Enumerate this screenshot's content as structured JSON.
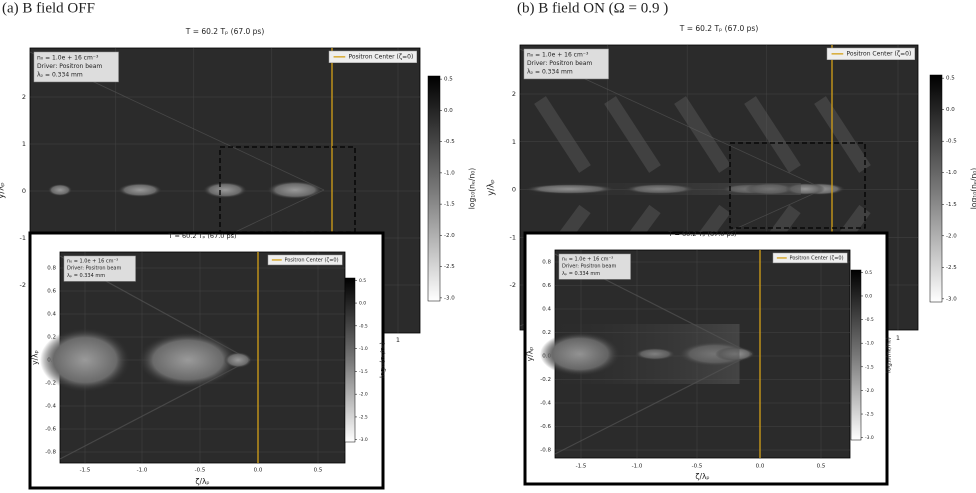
{
  "panels": [
    {
      "caption": "(a) B field OFF",
      "main": {
        "title": "T = 60.2 Tₚ (67.0 ps)",
        "info": [
          "n₀ = 1.0e + 16 cm⁻³",
          "Driver: Positron beam",
          "λₚ = 0.334 mm"
        ],
        "legend": "Positron Center (ζ=0)",
        "ylabel": "y/λₚ",
        "yticks": [
          "2",
          "1",
          "0",
          "-1",
          "-2"
        ],
        "xticks": [
          "1"
        ],
        "colorbar_label": "log₁₀(nₑ/n₀)",
        "colorbar_ticks": [
          "0.5",
          "0.0",
          "-0.5",
          "-1.0",
          "-1.5",
          "-2.0",
          "-2.5",
          "-3.0"
        ]
      },
      "inset": {
        "title": "T = 60.2 Tₚ (67.0 ps)",
        "info": [
          "n₀ = 1.0e + 16 cm⁻³",
          "Driver: Positron beam",
          "λₚ = 0.334 mm"
        ],
        "legend": "Positron Center (ζ=0)",
        "ylabel": "y/λₚ",
        "xlabel": "ζ/λₚ",
        "yticks": [
          "0.8",
          "0.6",
          "0.4",
          "0.2",
          "0.0",
          "-0.2",
          "-0.4",
          "-0.6",
          "-0.8"
        ],
        "xticks": [
          "-1.5",
          "-1.0",
          "-0.5",
          "0.0",
          "0.5"
        ],
        "colorbar_label": "log₁₀(nₑ/n₀)",
        "colorbar_ticks": [
          "0.5",
          "0.0",
          "-0.5",
          "-1.0",
          "-1.5",
          "-2.0",
          "-2.5",
          "-3.0"
        ]
      }
    },
    {
      "caption": "(b) B field ON (Ω = 0.9 )",
      "main": {
        "title": "T = 60.2 Tₚ (67.0 ps)",
        "info": [
          "n₀ = 1.0e + 16 cm⁻³",
          "Driver: Positron beam",
          "λₚ = 0.334 mm"
        ],
        "legend": "Positron Center (ζ=0)",
        "ylabel": "y/λₚ",
        "yticks": [
          "2",
          "1",
          "0",
          "-1",
          "-2"
        ],
        "xticks": [
          "1"
        ],
        "colorbar_label": "log₁₀(nₑ/n₀)",
        "colorbar_ticks": [
          "0.5",
          "0.0",
          "-0.5",
          "-1.0",
          "-1.5",
          "-2.0",
          "-2.5",
          "-3.0"
        ]
      },
      "inset": {
        "title": "T = 60.2 Tₚ (67.0 ps)",
        "info": [
          "n₀ = 1.0e + 16 cm⁻³",
          "Driver: Positron beam",
          "λₚ = 0.334 mm"
        ],
        "legend": "Positron Center (ζ=0)",
        "ylabel": "y/λₚ",
        "xlabel": "ζ/λₚ",
        "yticks": [
          "0.8",
          "0.6",
          "0.4",
          "0.2",
          "0.0",
          "-0.2",
          "-0.4",
          "-0.6",
          "-0.8"
        ],
        "xticks": [
          "-1.5",
          "-1.0",
          "-0.5",
          "0.0",
          "0.5"
        ],
        "colorbar_label": "log₁₀(nₑ/n₀)",
        "colorbar_ticks": [
          "0.5",
          "0.0",
          "-0.5",
          "-1.0",
          "-1.5",
          "-2.0",
          "-2.5",
          "-3.0"
        ]
      }
    }
  ]
}
